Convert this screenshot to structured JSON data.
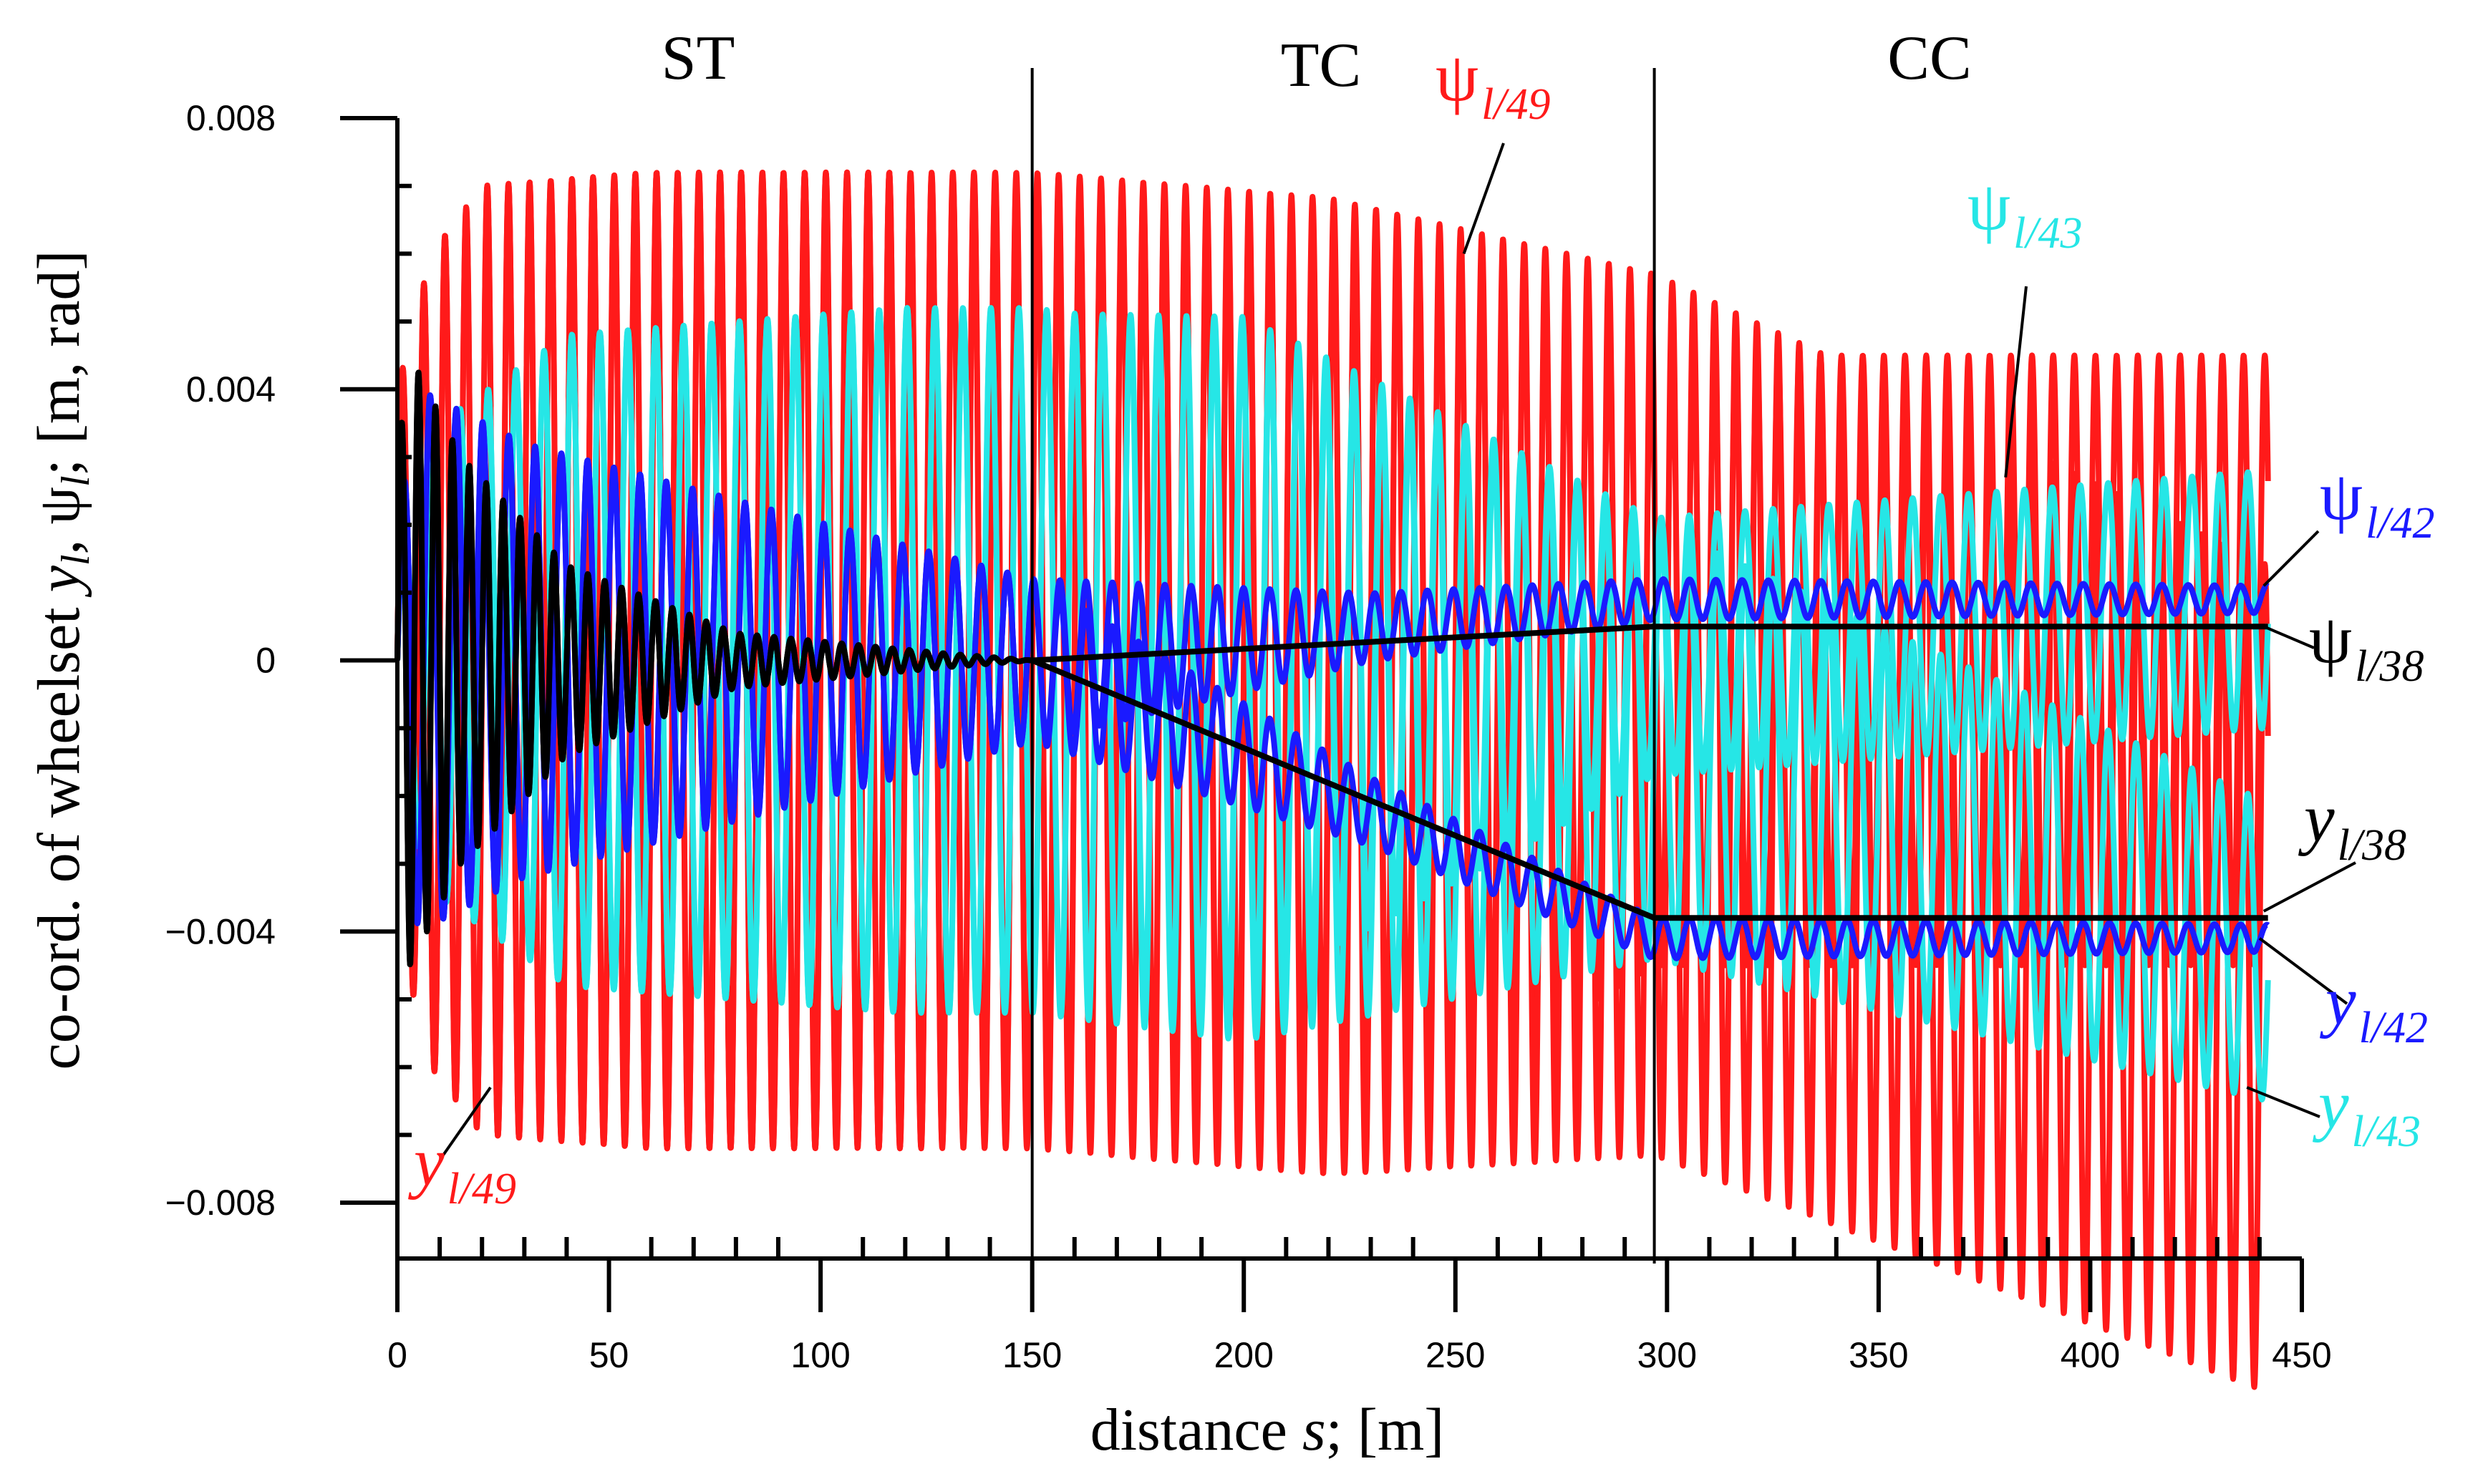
{
  "chart_data": {
    "type": "line",
    "xlabel": {
      "prefix": "distance ",
      "var": "s",
      "suffix": "; [m]"
    },
    "ylabel": {
      "prefix": "co-ord. of wheelset ",
      "y": "y",
      "sep": ", ",
      "psi": "ψ",
      "sub": "l",
      "suffix": "; [m, rad]"
    },
    "xlim": [
      0,
      450
    ],
    "ylim": [
      -0.008,
      0.008
    ],
    "x_ticks": [
      0,
      50,
      100,
      150,
      200,
      250,
      300,
      350,
      400,
      450
    ],
    "x_tick_labels": [
      "0",
      "50",
      "100",
      "150",
      "200",
      "250",
      "300",
      "350",
      "400",
      "450"
    ],
    "y_ticks": [
      0.008,
      0.004,
      0,
      -0.004,
      -0.008
    ],
    "y_tick_labels": [
      "0.008",
      "0.004",
      "0",
      "−0.004",
      "−0.008"
    ],
    "sections": [
      {
        "name": "ST",
        "x_from": 0,
        "x_to": 150
      },
      {
        "name": "TC",
        "x_from": 150,
        "x_to": 297
      },
      {
        "name": "CC",
        "x_from": 297,
        "x_to": 442
      }
    ],
    "section_boundaries": [
      150,
      297
    ],
    "colors": {
      "red": "#ff1a1a",
      "cyan": "#26e6e6",
      "blue": "#1a1aff",
      "black": "#000000"
    },
    "series": [
      {
        "name": "ψl/49",
        "symbol": "ψ",
        "sub": "l/49",
        "color": "#ff1a1a",
        "kind": "osc",
        "envelope": {
          "s": [
            0,
            8,
            20,
            60,
            120,
            160,
            200,
            240,
            270,
            297,
            442
          ],
          "amp": [
            0.004,
            0.006,
            0.007,
            0.0072,
            0.0072,
            0.007,
            0.0067,
            0.0062,
            0.0055,
            0.0045,
            0.0045
          ]
        },
        "mean": {
          "s": [
            0,
            150,
            297,
            442
          ],
          "v": [
            0,
            0,
            0,
            0
          ]
        },
        "wavelength": 5.0
      },
      {
        "name": "yl/49",
        "symbol": "y",
        "sub": "l/49",
        "color": "#ff1a1a",
        "kind": "osc",
        "envelope": {
          "s": [
            0,
            8,
            20,
            60,
            150,
            220,
            297,
            442
          ],
          "amp": [
            0.004,
            0.006,
            0.007,
            0.0072,
            0.0072,
            0.0072,
            0.0065,
            0.0061
          ]
        },
        "mean": {
          "s": [
            0,
            150,
            297,
            442
          ],
          "v": [
            0,
            0,
            -0.0008,
            -0.0047
          ]
        },
        "wavelength": 5.0
      },
      {
        "name": "ψl/43",
        "symbol": "ψ",
        "sub": "l/43",
        "color": "#26e6e6",
        "kind": "osc",
        "envelope": {
          "s": [
            0,
            10,
            40,
            120,
            200,
            297,
            442
          ],
          "amp": [
            0.002,
            0.0035,
            0.0048,
            0.0052,
            0.005,
            0.0019,
            0.0019
          ]
        },
        "mean": {
          "s": [
            0,
            150,
            297,
            442
          ],
          "v": [
            0,
            0,
            0.0002,
            0.0009
          ]
        },
        "wavelength": 6.6
      },
      {
        "name": "yl/43",
        "symbol": "y",
        "sub": "l/43",
        "color": "#26e6e6",
        "kind": "osc",
        "envelope": {
          "s": [
            0,
            10,
            40,
            120,
            200,
            297,
            442
          ],
          "amp": [
            0.002,
            0.0035,
            0.0048,
            0.0052,
            0.0052,
            0.0032,
            0.0022
          ]
        },
        "mean": {
          "s": [
            0,
            150,
            297,
            442
          ],
          "v": [
            0,
            0,
            -0.0012,
            -0.0043
          ]
        },
        "wavelength": 6.6
      },
      {
        "name": "ψl/42",
        "symbol": "ψ",
        "sub": "l/42",
        "color": "#1a1aff",
        "kind": "osc",
        "envelope": {
          "s": [
            0,
            5,
            30,
            90,
            150,
            230,
            297,
            442
          ],
          "amp": [
            0.002,
            0.004,
            0.0032,
            0.0022,
            0.0012,
            0.0005,
            0.0003,
            0.0002
          ]
        },
        "mean": {
          "s": [
            0,
            150,
            297,
            442
          ],
          "v": [
            0,
            0,
            0.0009,
            0.0009
          ]
        },
        "wavelength": 6.2
      },
      {
        "name": "yl/42",
        "symbol": "y",
        "sub": "l/42",
        "color": "#1a1aff",
        "kind": "osc",
        "envelope": {
          "s": [
            0,
            5,
            30,
            90,
            150,
            230,
            297,
            442
          ],
          "amp": [
            0.002,
            0.004,
            0.0032,
            0.0022,
            0.0012,
            0.0005,
            0.0003,
            0.0002
          ]
        },
        "mean": {
          "s": [
            0,
            150,
            297,
            442
          ],
          "v": [
            0,
            0,
            -0.0041,
            -0.0041
          ]
        },
        "wavelength": 6.2
      },
      {
        "name": "ψl/38",
        "symbol": "ψ",
        "sub": "l/38",
        "color": "#000000",
        "kind": "osc",
        "envelope": {
          "s": [
            0,
            3,
            15,
            40,
            80,
            130,
            150,
            442
          ],
          "amp": [
            0.003,
            0.0045,
            0.003,
            0.0014,
            0.0004,
            0.0001,
            0,
            0
          ]
        },
        "mean": {
          "s": [
            0,
            150,
            297,
            442
          ],
          "v": [
            0,
            0,
            0.0005,
            0.0005
          ]
        },
        "wavelength": 4.0
      },
      {
        "name": "yl/38",
        "symbol": "y",
        "sub": "l/38",
        "color": "#000000",
        "kind": "osc",
        "envelope": {
          "s": [
            0,
            3,
            15,
            40,
            80,
            130,
            150,
            442
          ],
          "amp": [
            0.003,
            0.0045,
            0.003,
            0.0014,
            0.0004,
            0.0001,
            0,
            0
          ]
        },
        "mean": {
          "s": [
            0,
            150,
            297,
            442
          ],
          "v": [
            0,
            0,
            -0.0038,
            -0.0038
          ]
        },
        "wavelength": 4.0
      }
    ],
    "annotations": [
      {
        "series": "ψl/49",
        "symbol": "ψ",
        "sub": "l/49",
        "color": "#ff1a1a",
        "point": [
          252,
          0.006
        ]
      },
      {
        "series": "ψl/43",
        "symbol": "ψ",
        "sub": "l/43",
        "color": "#26e6e6",
        "point": [
          380,
          0.0027
        ]
      },
      {
        "series": "ψl/42",
        "symbol": "ψ",
        "sub": "l/42",
        "color": "#1a1aff",
        "point": [
          441,
          0.0011
        ]
      },
      {
        "series": "ψl/38",
        "symbol": "ψ",
        "sub": "l/38",
        "color": "#000000",
        "point": [
          441,
          0.0005
        ]
      },
      {
        "series": "yl/38",
        "symbol": "y",
        "sub": "l/38",
        "color": "#000000",
        "point": [
          441,
          -0.0037
        ]
      },
      {
        "series": "yl/42",
        "symbol": "y",
        "sub": "l/42",
        "color": "#1a1aff",
        "point": [
          440,
          -0.0041
        ]
      },
      {
        "series": "yl/43",
        "symbol": "y",
        "sub": "l/43",
        "color": "#26e6e6",
        "point": [
          437,
          -0.0063
        ]
      },
      {
        "series": "yl/49",
        "symbol": "y",
        "sub": "l/49",
        "color": "#ff1a1a",
        "point": [
          22,
          -0.0063
        ]
      }
    ]
  }
}
